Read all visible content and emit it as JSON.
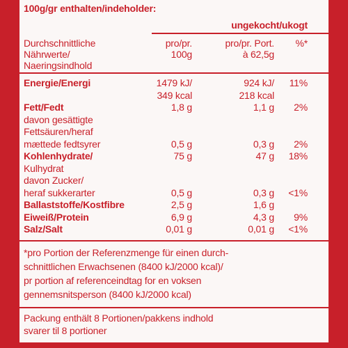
{
  "header": {
    "title": "100g/gr enthalten/indeholder:",
    "subtitle": "ungekocht/ukogt"
  },
  "table": {
    "columns": {
      "label": [
        "Durchschnittliche",
        "Nährwerte/",
        "Naeringsindhold"
      ],
      "per_100g": [
        "pro/pr.",
        "100g"
      ],
      "per_portion": [
        "pro/pr. Port.",
        "à 62,5g"
      ],
      "percent": [
        "%*"
      ]
    },
    "rows": [
      {
        "label": [
          "Energie/Energi"
        ],
        "bold": true,
        "per_100g": [
          "1479 kJ/",
          "349 kcal"
        ],
        "per_portion": [
          "924 kJ/",
          "218 kcal"
        ],
        "percent": [
          "11%"
        ]
      },
      {
        "label": [
          "Fett/Fedt"
        ],
        "bold": true,
        "per_100g": [
          "1,8 g"
        ],
        "per_portion": [
          "1,1 g"
        ],
        "percent": [
          "2%"
        ]
      },
      {
        "label": [
          "davon gesättigte",
          "Fettsäuren/heraf",
          "mættede fedtsyrer"
        ],
        "per_100g": [
          "0,5 g"
        ],
        "per_portion": [
          "0,3 g"
        ],
        "percent": [
          "2%"
        ]
      },
      {
        "label": [
          "Kohlenhydrate/",
          "Kulhydrat"
        ],
        "bold": true,
        "per_100g": [
          "75 g"
        ],
        "per_portion": [
          "47 g"
        ],
        "percent": [
          "18%"
        ]
      },
      {
        "label": [
          "davon Zucker/",
          "heraf sukkerarter"
        ],
        "per_100g": [
          "0,5 g"
        ],
        "per_portion": [
          "0,3 g"
        ],
        "percent": [
          "<1%"
        ]
      },
      {
        "label": [
          "Ballaststoffe/Kostfibre"
        ],
        "bold": true,
        "per_100g": [
          "2,5 g"
        ],
        "per_portion": [
          "1,6 g"
        ]
      },
      {
        "label": [
          "Eiweiß/Protein"
        ],
        "bold": true,
        "per_100g": [
          "6,9 g"
        ],
        "per_portion": [
          "4,3 g"
        ],
        "percent": [
          "9%"
        ]
      },
      {
        "label": [
          "Salz/Salt"
        ],
        "bold": true,
        "per_100g": [
          "0,01 g"
        ],
        "per_portion": [
          "0,01 g"
        ],
        "percent": [
          "<1%"
        ]
      }
    ]
  },
  "footnote": [
    "*pro Portion der Referenzmenge für einen durch-",
    "schnittlichen Erwachsenen (8400 kJ/2000 kcal)/",
    "pr portion af referenceindtag for en voksen",
    "gennemsnitsperson (8400 kJ/2000 kcal)"
  ],
  "packing": [
    "Packung enthält 8 Portionen/pakkens indhold",
    "svarer til 8 portioner"
  ]
}
